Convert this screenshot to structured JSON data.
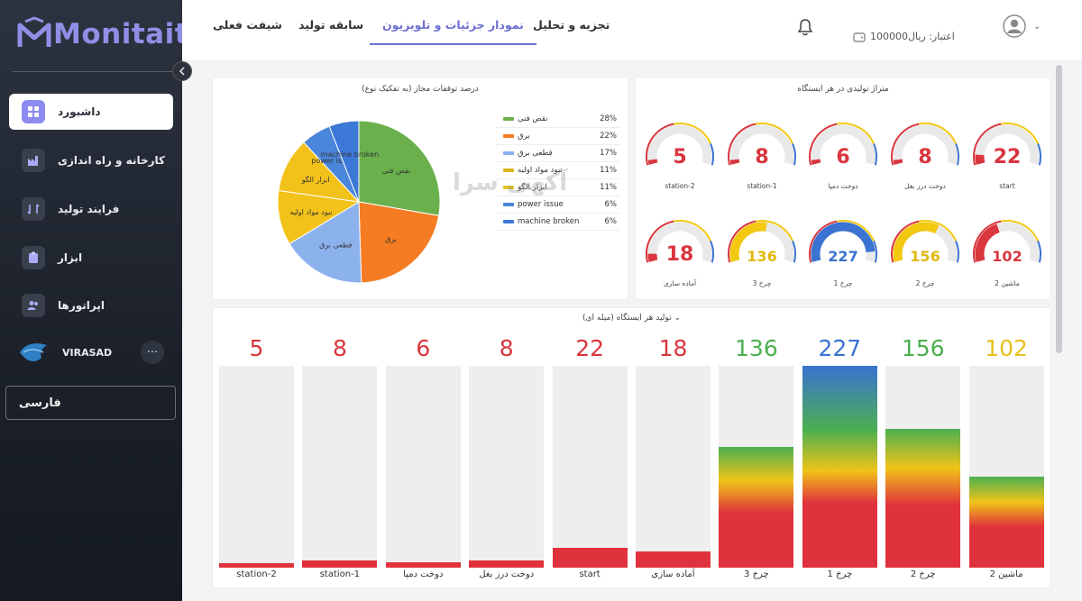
{
  "app": {
    "brand": "Monitait"
  },
  "sidebar": {
    "items": [
      {
        "label": "داشبورد",
        "icon": "grid-icon",
        "active": true
      },
      {
        "label": "کارخانه و راه اندازی",
        "icon": "factory-icon",
        "active": false
      },
      {
        "label": "فرایند تولید",
        "icon": "process-icon",
        "active": false
      },
      {
        "label": "ابزار",
        "icon": "clipboard-icon",
        "active": false
      },
      {
        "label": "اپراتورها",
        "icon": "users-icon",
        "active": false
      }
    ],
    "user": {
      "name": "VIRASAD",
      "more": "···"
    },
    "language": "فارسی"
  },
  "header": {
    "tabs": [
      {
        "label": "تجزیه و تحلیل",
        "active": false
      },
      {
        "label": "نمودار جزئیات و تلویزیون",
        "active": true
      },
      {
        "label": "سابقه تولید",
        "active": false
      },
      {
        "label": "شیفت فعلی",
        "active": false
      }
    ],
    "credit": "اعتبار: ریال100000"
  },
  "watermark": "آکهی سرا",
  "pie_card": {
    "title": "درصد توقفات مجاز (به تفکیک نوع)"
  },
  "gauge_card": {
    "title": "متراژ تولیدی در هر ایستگاه"
  },
  "bar_card": {
    "title": "تولید هر ایستگاه (میله ای)",
    "chevron": "⌄"
  },
  "colors": {
    "red": "#d9363e",
    "yellow": "#f2c811",
    "blue": "#3a73d1",
    "green": "#5cab3c",
    "accent": "#6b6fd1"
  },
  "chart_data": [
    {
      "type": "pie",
      "title": "درصد توقفات مجاز (به تفکیک نوع)",
      "slices": [
        {
          "label": "نقص فنی",
          "value": 28,
          "color": "#6ab04c"
        },
        {
          "label": "برق",
          "value": 22,
          "color": "#f57c22"
        },
        {
          "label": "قطعی برق",
          "value": 17,
          "color": "#8cb2ee"
        },
        {
          "label": "نبود مواد اولیه",
          "value": 11,
          "color": "#f2c21b"
        },
        {
          "label": "ابزار الگو",
          "value": 11,
          "color": "#f2c21b"
        },
        {
          "label": "power issue",
          "value": 6,
          "color": "#4a86d9"
        },
        {
          "label": "machine broken",
          "value": 6,
          "color": "#3c78d8"
        }
      ],
      "legend": [
        {
          "label": "نقص فنی",
          "pct": "28%",
          "color": "#6ab04c"
        },
        {
          "label": "برق",
          "pct": "22%",
          "color": "#f57c22"
        },
        {
          "label": "قطعی برق",
          "pct": "17%",
          "color": "#8cb2ee"
        },
        {
          "label": "نبود مواد اولیه",
          "pct": "11%",
          "color": "#d9b51c"
        },
        {
          "label": "ابزار الگو",
          "pct": "11%",
          "color": "#e0c020"
        },
        {
          "label": "power issue",
          "pct": "6%",
          "color": "#4a86d9"
        },
        {
          "label": "machine broken",
          "pct": "6%",
          "color": "#3c78d8"
        }
      ],
      "legend_position": "right"
    },
    {
      "type": "gauge",
      "title": "متراژ تولیدی در هر ایستگاه",
      "max": 250,
      "gauges": [
        {
          "label": "start",
          "value": 22,
          "color": "#d9363e"
        },
        {
          "label": "دوخت درز بغل",
          "value": 8,
          "color": "#d9363e"
        },
        {
          "label": "دوخت دمپا",
          "value": 6,
          "color": "#d9363e"
        },
        {
          "label": "station-1",
          "value": 8,
          "color": "#d9363e"
        },
        {
          "label": "station-2",
          "value": 5,
          "color": "#d9363e"
        },
        {
          "label": "ماشین 2",
          "value": 102,
          "color": "#d9363e"
        },
        {
          "label": "چرخ 2",
          "value": 156,
          "color": "#f2c811"
        },
        {
          "label": "چرخ 1",
          "value": 227,
          "color": "#3a73d1"
        },
        {
          "label": "چرخ 3",
          "value": 136,
          "color": "#f2c811"
        },
        {
          "label": "آماده سازی",
          "value": 18,
          "color": "#d9363e"
        }
      ]
    },
    {
      "type": "bar",
      "title": "تولید هر ایستگاه (میله ای)",
      "ylim": [
        0,
        227
      ],
      "bars": [
        {
          "label": "station-2",
          "value": 5,
          "value_color": "#d9363e"
        },
        {
          "label": "station-1",
          "value": 8,
          "value_color": "#d9363e"
        },
        {
          "label": "دوخت دمپا",
          "value": 6,
          "value_color": "#d9363e"
        },
        {
          "label": "دوخت درز بغل",
          "value": 8,
          "value_color": "#d9363e"
        },
        {
          "label": "start",
          "value": 22,
          "value_color": "#d9363e"
        },
        {
          "label": "آماده سازی",
          "value": 18,
          "value_color": "#d9363e"
        },
        {
          "label": "چرخ 3",
          "value": 136,
          "value_color": "#4caf50"
        },
        {
          "label": "چرخ 1",
          "value": 227,
          "value_color": "#3a73d1"
        },
        {
          "label": "چرخ 2",
          "value": 156,
          "value_color": "#4caf50"
        },
        {
          "label": "ماشین 2",
          "value": 102,
          "value_color": "#e6c020"
        }
      ]
    }
  ]
}
